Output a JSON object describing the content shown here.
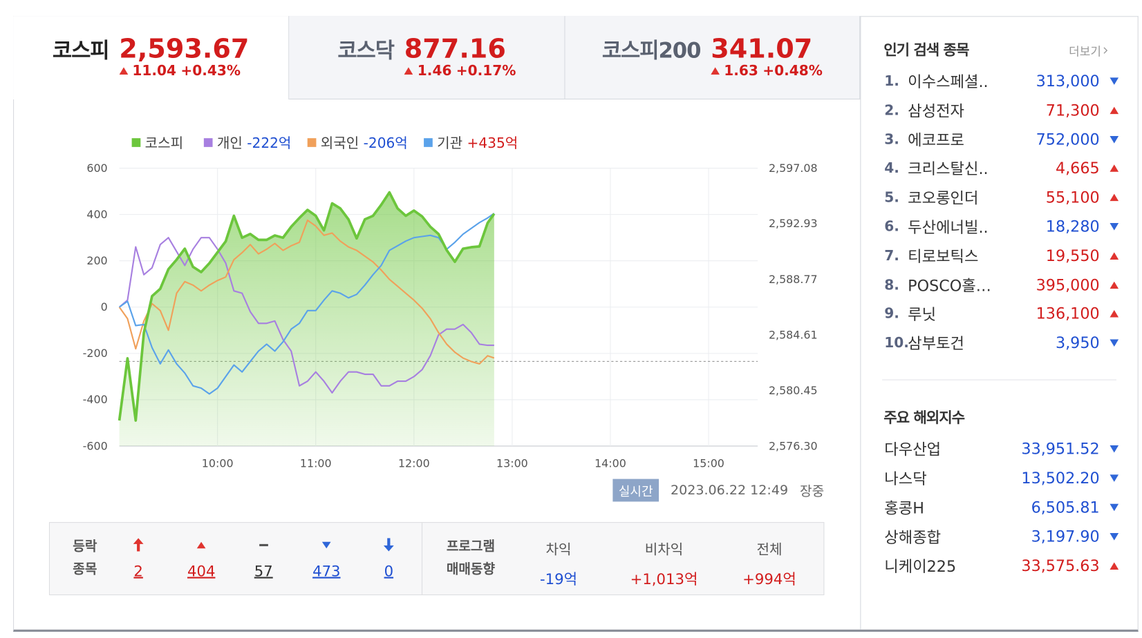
{
  "tabs": [
    {
      "name": "코스피",
      "value": "2,593.67",
      "change": "11.04",
      "rate": "+0.43%",
      "direction": "up",
      "active": true
    },
    {
      "name": "코스닥",
      "value": "877.16",
      "change": "1.46",
      "rate": "+0.17%",
      "direction": "up"
    },
    {
      "name": "코스피200",
      "value": "341.07",
      "change": "1.63",
      "rate": "+0.48%",
      "direction": "up"
    }
  ],
  "chart_data": {
    "type": "line",
    "x": [
      "09:00",
      "09:05",
      "09:10",
      "09:15",
      "09:20",
      "09:25",
      "09:30",
      "09:35",
      "09:40",
      "09:45",
      "09:50",
      "09:55",
      "10:00",
      "10:05",
      "10:10",
      "10:15",
      "10:20",
      "10:25",
      "10:30",
      "10:35",
      "10:40",
      "10:45",
      "10:50",
      "10:55",
      "11:00",
      "11:05",
      "11:10",
      "11:15",
      "11:20",
      "11:25",
      "11:30",
      "11:35",
      "11:40",
      "11:45",
      "11:50",
      "11:55",
      "12:00",
      "12:05",
      "12:10",
      "12:15",
      "12:20",
      "12:25",
      "12:30",
      "12:35",
      "12:40",
      "12:45",
      "12:49"
    ],
    "xlim": [
      "09:00",
      "15:30"
    ],
    "xticks": [
      "10:00",
      "11:00",
      "12:00",
      "13:00",
      "14:00",
      "15:00"
    ],
    "ylim": [
      -600,
      600
    ],
    "yticks": [
      -600,
      -400,
      -200,
      0,
      200,
      400,
      600
    ],
    "y2lim": [
      2576.3,
      2597.08
    ],
    "y2ticks": [
      {
        "value": 2576.3,
        "label": "2,576.30"
      },
      {
        "value": 2580.45,
        "label": "2,580.45"
      },
      {
        "value": 2584.61,
        "label": "2,584.61"
      },
      {
        "value": 2588.77,
        "label": "2,588.77"
      },
      {
        "value": 2592.93,
        "label": "2,592.93"
      },
      {
        "value": 2597.08,
        "label": "2,597.08"
      }
    ],
    "reference_line": 2582.63,
    "grid": true,
    "series": [
      {
        "name": "개인",
        "amount": "-222억",
        "color": "#a77fe0",
        "values": [
          0,
          30,
          260,
          140,
          170,
          270,
          300,
          240,
          180,
          250,
          300,
          300,
          250,
          190,
          70,
          60,
          -20,
          -70,
          -70,
          -60,
          -140,
          -190,
          -340,
          -320,
          -280,
          -320,
          -370,
          -320,
          -280,
          -280,
          -290,
          -290,
          -340,
          -340,
          -320,
          -320,
          -300,
          -270,
          -210,
          -120,
          -95,
          -95,
          -75,
          -110,
          -160,
          -165,
          -165
        ]
      },
      {
        "name": "외국인",
        "amount": "-206억",
        "color": "#f0a05a",
        "values": [
          0,
          -50,
          -180,
          -60,
          15,
          -15,
          -100,
          60,
          110,
          95,
          70,
          95,
          115,
          130,
          205,
          235,
          270,
          230,
          250,
          275,
          245,
          265,
          280,
          375,
          350,
          310,
          320,
          285,
          260,
          245,
          220,
          195,
          160,
          120,
          90,
          60,
          30,
          -5,
          -50,
          -110,
          -160,
          -195,
          -220,
          -235,
          -245,
          -210,
          -220
        ]
      },
      {
        "name": "기관",
        "amount": "+435억",
        "color": "#5aa2ea",
        "values": [
          0,
          25,
          -80,
          -75,
          -175,
          -245,
          -185,
          -245,
          -285,
          -340,
          -350,
          -375,
          -350,
          -300,
          -250,
          -280,
          -235,
          -190,
          -160,
          -190,
          -150,
          -95,
          -70,
          -15,
          -15,
          30,
          70,
          60,
          40,
          55,
          95,
          140,
          180,
          245,
          265,
          285,
          300,
          305,
          310,
          300,
          250,
          280,
          315,
          340,
          365,
          385,
          405
        ]
      },
      {
        "name": "코스피",
        "color": "#6cc63c",
        "axis": "y2",
        "area": true,
        "values": [
          2578.21,
          2582.86,
          2578.21,
          2584.78,
          2587.51,
          2588.06,
          2589.53,
          2590.24,
          2591.06,
          2589.7,
          2589.31,
          2589.97,
          2590.79,
          2591.61,
          2593.52,
          2591.88,
          2592.16,
          2591.72,
          2591.72,
          2592.05,
          2591.88,
          2592.7,
          2593.36,
          2593.96,
          2593.52,
          2592.43,
          2594.45,
          2594.07,
          2593.25,
          2591.83,
          2593.25,
          2593.52,
          2594.34,
          2595.27,
          2594.07,
          2593.52,
          2593.91,
          2593.47,
          2592.7,
          2592.16,
          2590.95,
          2590.08,
          2591.06,
          2591.17,
          2591.23,
          2592.98,
          2593.67
        ]
      }
    ],
    "legend_order": [
      3,
      0,
      1,
      2
    ]
  },
  "status": {
    "badge": "실시간",
    "datetime": "2023.06.22 12:49",
    "state": "장중"
  },
  "breadth": {
    "label": [
      "등락",
      "종목"
    ],
    "items": [
      {
        "kind": "upper-limit",
        "count": "2"
      },
      {
        "kind": "up",
        "count": "404"
      },
      {
        "kind": "flat",
        "count": "57"
      },
      {
        "kind": "down",
        "count": "473"
      },
      {
        "kind": "lower-limit",
        "count": "0"
      }
    ]
  },
  "program": {
    "label": [
      "프로그램",
      "매매동향"
    ],
    "columns": [
      {
        "name": "차익",
        "value": "-19억"
      },
      {
        "name": "비차익",
        "value": "+1,013억"
      },
      {
        "name": "전체",
        "value": "+994억"
      }
    ]
  },
  "popular": {
    "title": "인기 검색 종목",
    "more": "더보기",
    "items": [
      {
        "rank": "1.",
        "name": "이수스페셜..",
        "price": "313,000",
        "direction": "down"
      },
      {
        "rank": "2.",
        "name": "삼성전자",
        "price": "71,300",
        "direction": "up"
      },
      {
        "rank": "3.",
        "name": "에코프로",
        "price": "752,000",
        "direction": "down"
      },
      {
        "rank": "4.",
        "name": "크리스탈신..",
        "price": "4,665",
        "direction": "up"
      },
      {
        "rank": "5.",
        "name": "코오롱인더",
        "price": "55,100",
        "direction": "up"
      },
      {
        "rank": "6.",
        "name": "두산에너빌..",
        "price": "18,280",
        "direction": "down"
      },
      {
        "rank": "7.",
        "name": "티로보틱스",
        "price": "19,550",
        "direction": "up"
      },
      {
        "rank": "8.",
        "name": "POSCO홀…",
        "price": "395,000",
        "direction": "up"
      },
      {
        "rank": "9.",
        "name": "루닛",
        "price": "136,100",
        "direction": "up"
      },
      {
        "rank": "10.",
        "name": "삼부토건",
        "price": "3,950",
        "direction": "down"
      }
    ]
  },
  "overseas": {
    "title": "주요 해외지수",
    "items": [
      {
        "name": "다우산업",
        "value": "33,951.52",
        "direction": "down"
      },
      {
        "name": "나스닥",
        "value": "13,502.20",
        "direction": "down"
      },
      {
        "name": "홍콩H",
        "value": "6,505.81",
        "direction": "down"
      },
      {
        "name": "상해종합",
        "value": "3,197.90",
        "direction": "down"
      },
      {
        "name": "니케이225",
        "value": "33,575.63",
        "direction": "up"
      }
    ]
  }
}
